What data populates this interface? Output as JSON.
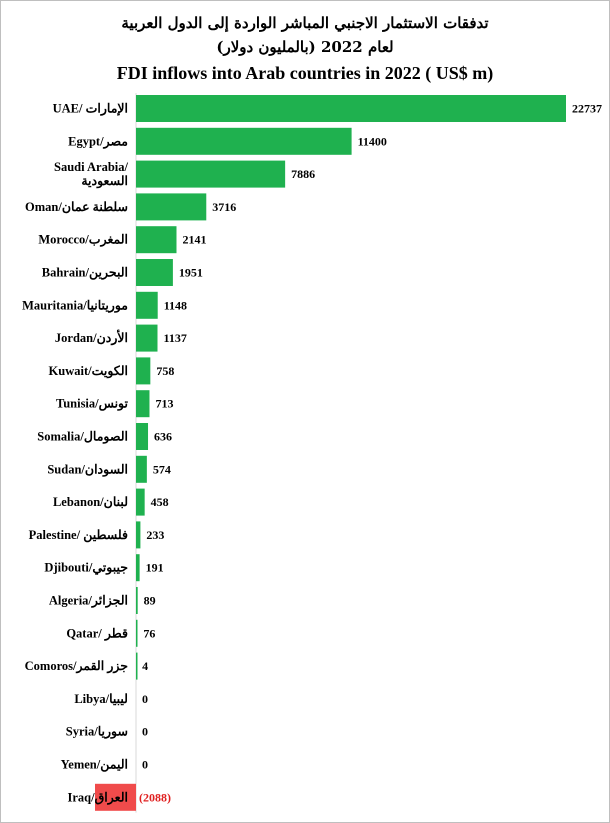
{
  "chart_data": {
    "type": "bar",
    "orientation": "horizontal",
    "title_ar_line1": "تدفقات الاستثمار الاجنبي المباشر الواردة إلى الدول العربية",
    "title_ar_line2": "لعام 2022 (بالمليون دولار)",
    "title_en": "FDI inflows into Arab countries in 2022 ( US$ m)",
    "xlabel": "",
    "ylabel": "",
    "grid": false,
    "legend": "none",
    "categories": [
      "UAE/ الإمارات",
      "Egypt/مصر",
      "Saudi Arabia/\nالسعودية",
      "Oman/سلطنة عمان",
      "Morocco/المغرب",
      "Bahrain/البحرين",
      "Mauritania/موريتانيا",
      "Jordan/الأردن",
      "Kuwait/الكويت",
      "Tunisia/تونس",
      "Somalia/الصومال",
      "Sudan/السودان",
      "Lebanon/لبنان",
      "Palestine/ فلسطين",
      "Djibouti/جيبوتي",
      "Algeria/الجزائر",
      "Qatar/ قطر",
      "Comoros/جزر القمر",
      "Libya/ليبيا",
      "Syria/سوريا",
      "Yemen/اليمن",
      "Iraq/العراق"
    ],
    "values": [
      22737,
      11400,
      7886,
      3716,
      2141,
      1951,
      1148,
      1137,
      758,
      713,
      636,
      574,
      458,
      233,
      191,
      89,
      76,
      4,
      0,
      0,
      0,
      -2088
    ],
    "value_labels": [
      "22737",
      "11400",
      "7886",
      "3716",
      "2141",
      "1951",
      "1148",
      "1137",
      "758",
      "713",
      "636",
      "574",
      "458",
      "233",
      "191",
      "89",
      "76",
      "4",
      "0",
      "0",
      "0",
      "(2088)"
    ],
    "colors": {
      "positive": "#1fb14f",
      "negative": "#f04b4b",
      "negative_text": "#e02020"
    }
  }
}
